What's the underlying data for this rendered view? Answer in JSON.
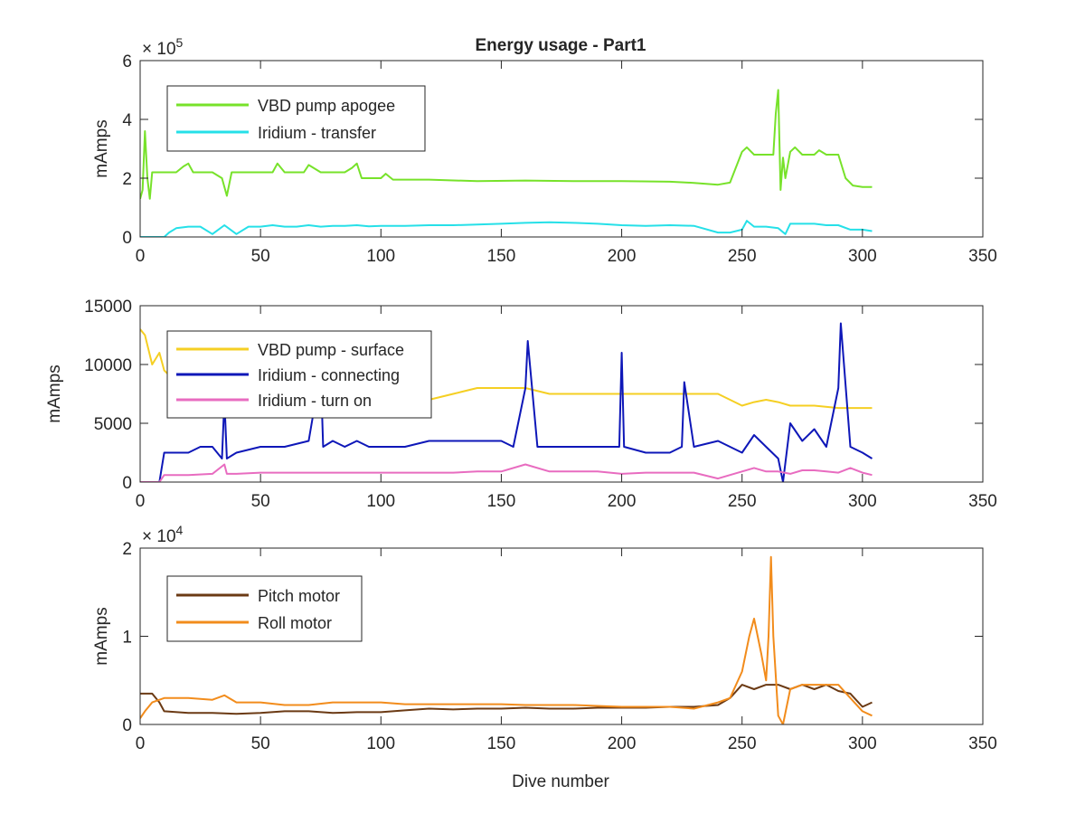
{
  "figure": {
    "title": "Energy usage - Part1",
    "xlabel": "Dive number"
  },
  "chart_data": [
    {
      "type": "line",
      "title": "Energy usage - Part1",
      "xlabel": "",
      "ylabel": "mAmps",
      "xlim": [
        0,
        350
      ],
      "ylim": [
        0,
        600000
      ],
      "xticks": [
        0,
        50,
        100,
        150,
        200,
        250,
        300,
        350
      ],
      "yticks": [
        0,
        200000,
        400000,
        600000
      ],
      "ytick_labels": [
        "0",
        "2",
        "4",
        "6"
      ],
      "exponent_label": "× 10",
      "exponent_power": "5",
      "grid": false,
      "legend": "top-left",
      "series": [
        {
          "name": "VBD pump apogee",
          "color": "#77e22a",
          "x": [
            0,
            1,
            2,
            3,
            4,
            5,
            6,
            10,
            15,
            18,
            20,
            22,
            25,
            30,
            34,
            36,
            38,
            45,
            55,
            57,
            60,
            68,
            70,
            75,
            85,
            88,
            90,
            92,
            95,
            98,
            100,
            102,
            105,
            120,
            140,
            160,
            180,
            200,
            220,
            230,
            240,
            245,
            250,
            252,
            255,
            260,
            263,
            264,
            265,
            266,
            267,
            268,
            270,
            272,
            275,
            280,
            282,
            285,
            290,
            293,
            296,
            300,
            304
          ],
          "y": [
            130000,
            160000,
            360000,
            200000,
            130000,
            220000,
            220000,
            220000,
            220000,
            240000,
            250000,
            220000,
            220000,
            220000,
            200000,
            140000,
            220000,
            220000,
            220000,
            250000,
            220000,
            220000,
            245000,
            220000,
            220000,
            235000,
            250000,
            200000,
            200000,
            200000,
            200000,
            215000,
            195000,
            195000,
            190000,
            192000,
            190000,
            190000,
            188000,
            184000,
            178000,
            185000,
            290000,
            305000,
            280000,
            280000,
            280000,
            420000,
            500000,
            160000,
            270000,
            200000,
            290000,
            305000,
            280000,
            280000,
            295000,
            280000,
            280000,
            200000,
            175000,
            170000,
            170000
          ]
        },
        {
          "name": "Iridium - transfer",
          "color": "#26e0e8",
          "x": [
            0,
            5,
            10,
            12,
            15,
            20,
            25,
            30,
            35,
            40,
            45,
            50,
            55,
            60,
            65,
            70,
            75,
            80,
            85,
            90,
            95,
            100,
            110,
            120,
            130,
            140,
            150,
            160,
            170,
            180,
            190,
            200,
            210,
            220,
            230,
            240,
            245,
            250,
            252,
            255,
            260,
            265,
            268,
            270,
            275,
            280,
            285,
            290,
            295,
            300,
            304
          ],
          "y": [
            0,
            0,
            0,
            15000,
            30000,
            35000,
            35000,
            10000,
            40000,
            10000,
            35000,
            35000,
            40000,
            35000,
            35000,
            40000,
            35000,
            38000,
            38000,
            40000,
            36000,
            38000,
            38000,
            40000,
            40000,
            42000,
            45000,
            48000,
            50000,
            48000,
            45000,
            40000,
            38000,
            40000,
            38000,
            15000,
            15000,
            25000,
            55000,
            35000,
            35000,
            30000,
            10000,
            45000,
            45000,
            45000,
            40000,
            40000,
            25000,
            25000,
            20000
          ]
        }
      ]
    },
    {
      "type": "line",
      "title": "",
      "xlabel": "",
      "ylabel": "mAmps",
      "xlim": [
        0,
        350
      ],
      "ylim": [
        0,
        15000
      ],
      "xticks": [
        0,
        50,
        100,
        150,
        200,
        250,
        300,
        350
      ],
      "yticks": [
        0,
        5000,
        10000,
        15000
      ],
      "ytick_labels": [
        "0",
        "5000",
        "10000",
        "15000"
      ],
      "grid": false,
      "legend": "top-left",
      "series": [
        {
          "name": "VBD pump - surface",
          "color": "#f5cf23",
          "x": [
            0,
            2,
            5,
            8,
            10,
            15,
            20,
            30,
            40,
            50,
            60,
            70,
            80,
            90,
            100,
            110,
            120,
            130,
            140,
            150,
            160,
            170,
            180,
            190,
            200,
            210,
            220,
            230,
            240,
            250,
            255,
            260,
            265,
            270,
            280,
            290,
            300,
            304
          ],
          "y": [
            13000,
            12500,
            10000,
            11000,
            9500,
            8500,
            8000,
            7500,
            7500,
            7000,
            6500,
            6500,
            7000,
            7000,
            7000,
            7000,
            7000,
            7500,
            8000,
            8000,
            8000,
            7500,
            7500,
            7500,
            7500,
            7500,
            7500,
            7500,
            7500,
            6500,
            6800,
            7000,
            6800,
            6500,
            6500,
            6300,
            6300,
            6300
          ]
        },
        {
          "name": "Iridium - connecting",
          "color": "#0e17b8",
          "x": [
            0,
            8,
            10,
            15,
            20,
            25,
            30,
            34,
            35,
            36,
            40,
            50,
            60,
            70,
            75,
            76,
            80,
            85,
            90,
            95,
            100,
            110,
            120,
            130,
            140,
            150,
            155,
            160,
            161,
            165,
            170,
            180,
            190,
            199,
            200,
            201,
            210,
            220,
            225,
            226,
            230,
            240,
            250,
            255,
            260,
            265,
            267,
            270,
            275,
            280,
            285,
            290,
            291,
            295,
            300,
            304
          ],
          "y": [
            0,
            0,
            2500,
            2500,
            2500,
            3000,
            3000,
            2000,
            7000,
            2000,
            2500,
            3000,
            3000,
            3500,
            9500,
            3000,
            3500,
            3000,
            3500,
            3000,
            3000,
            3000,
            3500,
            3500,
            3500,
            3500,
            3000,
            8000,
            12000,
            3000,
            3000,
            3000,
            3000,
            3000,
            11000,
            3000,
            2500,
            2500,
            3000,
            8500,
            3000,
            3500,
            2500,
            4000,
            3000,
            2000,
            0,
            5000,
            3500,
            4500,
            3000,
            8000,
            13500,
            3000,
            2500,
            2000
          ]
        },
        {
          "name": "Iridium - turn on",
          "color": "#e86cc0",
          "x": [
            0,
            8,
            10,
            20,
            30,
            35,
            36,
            40,
            50,
            60,
            70,
            80,
            90,
            100,
            110,
            120,
            130,
            140,
            150,
            160,
            170,
            180,
            190,
            200,
            210,
            220,
            230,
            240,
            250,
            255,
            260,
            265,
            270,
            275,
            280,
            285,
            290,
            295,
            300,
            304
          ],
          "y": [
            0,
            0,
            600,
            600,
            700,
            1500,
            700,
            700,
            800,
            800,
            800,
            800,
            800,
            800,
            800,
            800,
            800,
            900,
            900,
            1500,
            900,
            900,
            900,
            700,
            800,
            800,
            800,
            300,
            900,
            1200,
            900,
            900,
            700,
            1000,
            1000,
            900,
            800,
            1200,
            800,
            600
          ]
        }
      ]
    },
    {
      "type": "line",
      "title": "",
      "xlabel": "Dive number",
      "ylabel": "mAmps",
      "xlim": [
        0,
        350
      ],
      "ylim": [
        0,
        20000
      ],
      "xticks": [
        0,
        50,
        100,
        150,
        200,
        250,
        300,
        350
      ],
      "yticks": [
        0,
        10000,
        20000
      ],
      "ytick_labels": [
        "0",
        "1",
        "2"
      ],
      "exponent_label": "× 10",
      "exponent_power": "4",
      "grid": false,
      "legend": "top-left",
      "series": [
        {
          "name": "Pitch motor",
          "color": "#6b3a14",
          "x": [
            0,
            5,
            8,
            10,
            20,
            30,
            40,
            50,
            60,
            70,
            80,
            90,
            100,
            110,
            120,
            130,
            140,
            150,
            160,
            170,
            180,
            190,
            200,
            210,
            220,
            230,
            240,
            245,
            250,
            255,
            260,
            265,
            270,
            275,
            280,
            285,
            290,
            295,
            300,
            304
          ],
          "y": [
            3500,
            3500,
            2500,
            1500,
            1300,
            1300,
            1200,
            1300,
            1500,
            1500,
            1300,
            1400,
            1400,
            1600,
            1800,
            1700,
            1800,
            1800,
            1900,
            1800,
            1800,
            1900,
            1900,
            1900,
            2000,
            2000,
            2200,
            3000,
            4500,
            4000,
            4500,
            4500,
            4000,
            4500,
            4000,
            4500,
            3800,
            3500,
            2000,
            2500
          ]
        },
        {
          "name": "Roll motor",
          "color": "#f28c1c",
          "x": [
            0,
            2,
            5,
            10,
            20,
            30,
            35,
            40,
            50,
            60,
            70,
            80,
            90,
            100,
            110,
            120,
            130,
            140,
            150,
            160,
            170,
            180,
            190,
            200,
            210,
            220,
            230,
            240,
            245,
            250,
            253,
            255,
            258,
            260,
            261,
            262,
            263,
            265,
            267,
            270,
            275,
            280,
            285,
            290,
            295,
            300,
            304
          ],
          "y": [
            700,
            1500,
            2500,
            3000,
            3000,
            2800,
            3300,
            2500,
            2500,
            2200,
            2200,
            2500,
            2500,
            2500,
            2300,
            2300,
            2300,
            2300,
            2300,
            2200,
            2200,
            2200,
            2100,
            2000,
            2000,
            2000,
            1800,
            2500,
            3000,
            6000,
            10000,
            12000,
            8000,
            5000,
            10000,
            19000,
            10000,
            1000,
            0,
            4000,
            4500,
            4500,
            4500,
            4500,
            3000,
            1500,
            1000
          ]
        }
      ]
    }
  ]
}
